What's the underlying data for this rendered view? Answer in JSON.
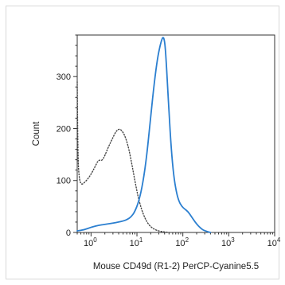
{
  "chart_data": {
    "type": "line",
    "title": "",
    "xlabel": "Mouse CD49d (R1-2) PerCP-Cyanine5.5",
    "ylabel": "Count",
    "xscale": "log",
    "xlim": [
      0.5,
      10000
    ],
    "ylim": [
      0,
      380
    ],
    "grid": false,
    "legend": "none",
    "x_ticks": [
      {
        "value": 1,
        "base": "10",
        "exp": "0"
      },
      {
        "value": 10,
        "base": "10",
        "exp": "1"
      },
      {
        "value": 100,
        "base": "10",
        "exp": "2"
      },
      {
        "value": 1000,
        "base": "10",
        "exp": "3"
      },
      {
        "value": 10000,
        "base": "10",
        "exp": "4"
      }
    ],
    "y_ticks": [
      {
        "value": 0,
        "label": "0"
      },
      {
        "value": 100,
        "label": "100"
      },
      {
        "value": 200,
        "label": "200"
      },
      {
        "value": 300,
        "label": "300"
      }
    ],
    "series": [
      {
        "style": "dotted",
        "color": "#444444",
        "x": [
          0.5,
          0.52,
          0.56,
          0.62,
          0.7,
          0.85,
          1.0,
          1.2,
          1.45,
          1.75,
          2.0,
          2.4,
          2.9,
          3.5,
          4.2,
          5.0,
          5.8,
          6.7,
          7.8,
          9.0,
          10.5,
          12.5,
          15.0,
          18.0,
          22.0,
          27.0,
          33.0,
          40.0,
          50.0
        ],
        "y": [
          290,
          135,
          100,
          92,
          95,
          103,
          112,
          125,
          140,
          138,
          148,
          165,
          180,
          195,
          200,
          193,
          180,
          160,
          130,
          100,
          70,
          45,
          27,
          15,
          8,
          4,
          2,
          1,
          0
        ]
      },
      {
        "style": "solid",
        "color": "#2b7fd0",
        "x": [
          0.5,
          0.7,
          1.0,
          1.5,
          2.2,
          3.0,
          4.0,
          5.0,
          6.2,
          7.5,
          9.0,
          11.0,
          13.5,
          16.5,
          20.0,
          24.0,
          28.0,
          32.0,
          35.0,
          37.0,
          39.0,
          41.0,
          43.0,
          46.0,
          50.0,
          56.0,
          63.0,
          72.0,
          82.0,
          95.0,
          110.0,
          130.0,
          155.0,
          185.0,
          220.0,
          270.0,
          330.0,
          400.0
        ],
        "y": [
          3,
          5,
          10,
          14,
          16,
          18,
          20,
          22,
          25,
          30,
          40,
          60,
          95,
          150,
          225,
          290,
          335,
          360,
          372,
          376,
          373,
          360,
          335,
          290,
          230,
          160,
          110,
          78,
          60,
          50,
          45,
          40,
          30,
          20,
          12,
          5,
          2,
          0
        ]
      }
    ]
  }
}
